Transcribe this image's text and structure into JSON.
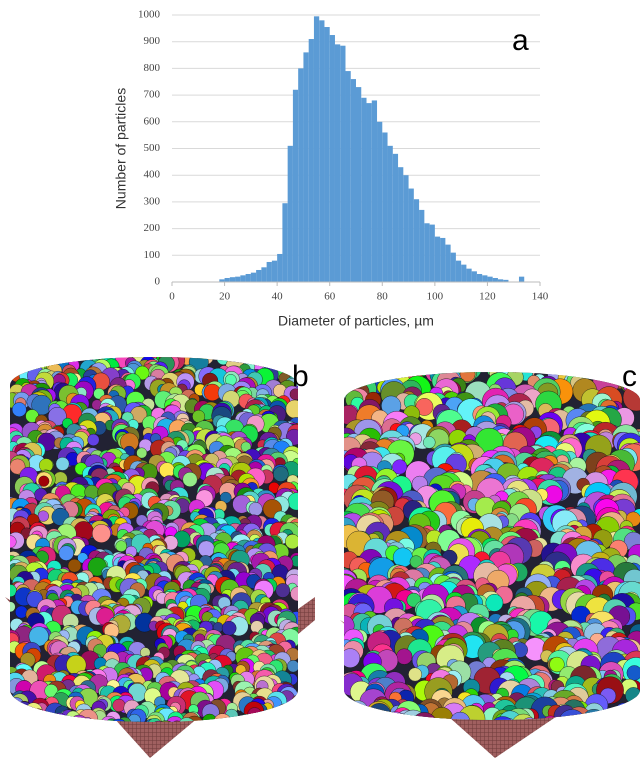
{
  "chart_data": {
    "type": "histogram",
    "xlabel": "Diameter of particles, µm",
    "ylabel": "Number of particles",
    "annotation": "a",
    "color": "#5b9bd5",
    "bins": [
      18,
      20,
      22,
      24,
      26,
      28,
      30,
      32,
      34,
      36,
      38,
      40,
      42,
      44,
      46,
      48,
      50,
      52,
      54,
      56,
      58,
      60,
      62,
      64,
      66,
      68,
      70,
      72,
      74,
      76,
      78,
      80,
      82,
      84,
      86,
      88,
      90,
      92,
      94,
      96,
      98,
      100,
      102,
      104,
      106,
      108,
      110,
      112,
      114,
      116,
      118,
      120,
      122,
      124,
      126,
      128,
      130,
      132,
      134
    ],
    "values": [
      10,
      15,
      18,
      20,
      25,
      30,
      35,
      45,
      55,
      75,
      80,
      105,
      295,
      510,
      720,
      800,
      860,
      910,
      995,
      980,
      955,
      925,
      890,
      885,
      790,
      760,
      730,
      690,
      670,
      680,
      600,
      560,
      510,
      480,
      430,
      400,
      350,
      310,
      270,
      220,
      215,
      170,
      165,
      140,
      110,
      80,
      65,
      50,
      40,
      30,
      25,
      20,
      15,
      10,
      8,
      0,
      0,
      20
    ],
    "xlim": [
      0,
      140
    ],
    "xticks": [
      0,
      20,
      40,
      60,
      80,
      100,
      120,
      140
    ],
    "ylim": [
      0,
      1000
    ],
    "yticks": [
      0,
      100,
      200,
      300,
      400,
      500,
      600,
      700,
      800,
      900,
      1000
    ],
    "grid": true
  },
  "images": [
    {
      "label": "b"
    },
    {
      "label": "c"
    }
  ]
}
